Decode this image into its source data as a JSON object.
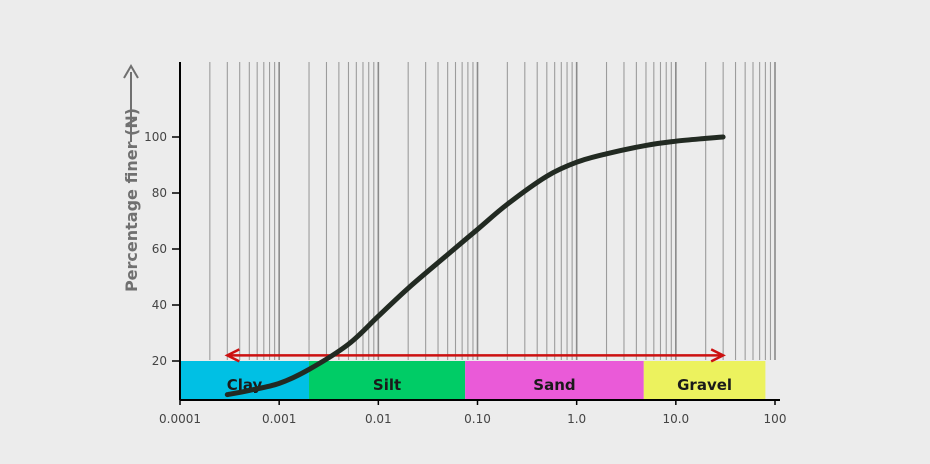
{
  "chart_data": {
    "type": "line",
    "xscale": "log",
    "xlim": [
      0.0001,
      100
    ],
    "ylim": [
      0,
      110
    ],
    "grid": true,
    "ylabel": "Percentage finer (N)",
    "xlabel": "",
    "title": "",
    "x_tick_labels": [
      {
        "value": 0.0001,
        "label": "0.0001"
      },
      {
        "value": 0.001,
        "label": "0.001"
      },
      {
        "value": 0.01,
        "label": "0.01"
      },
      {
        "value": 0.1,
        "label": "0.10"
      },
      {
        "value": 1,
        "label": "1.0"
      },
      {
        "value": 10,
        "label": "10.0"
      },
      {
        "value": 100,
        "label": "100"
      }
    ],
    "y_ticks": [
      20,
      40,
      60,
      80,
      100
    ],
    "series": [
      {
        "color": "#222a22",
        "x": [
          0.0003,
          0.0005,
          0.001,
          0.002,
          0.005,
          0.01,
          0.02,
          0.05,
          0.1,
          0.2,
          0.5,
          1,
          2,
          5,
          10,
          20,
          30
        ],
        "y": [
          8,
          9.5,
          12,
          17,
          26,
          36,
          46,
          58,
          67,
          76,
          86,
          91,
          94,
          97,
          98.5,
          99.5,
          100
        ]
      }
    ],
    "range_arrow": {
      "from": 0.0003,
      "to": 30,
      "y": 22,
      "color": "#cc1111"
    },
    "bands": [
      {
        "label": "Clay",
        "from": 0.0001,
        "to": 0.002,
        "color": "#00c0e4"
      },
      {
        "label": "Silt",
        "from": 0.002,
        "to": 0.075,
        "color": "#00cc66"
      },
      {
        "label": "Sand",
        "from": 0.075,
        "to": 4.75,
        "color": "#ea5ad8"
      },
      {
        "label": "Gravel",
        "from": 4.75,
        "to": 80,
        "color": "#ecf25e"
      }
    ]
  }
}
